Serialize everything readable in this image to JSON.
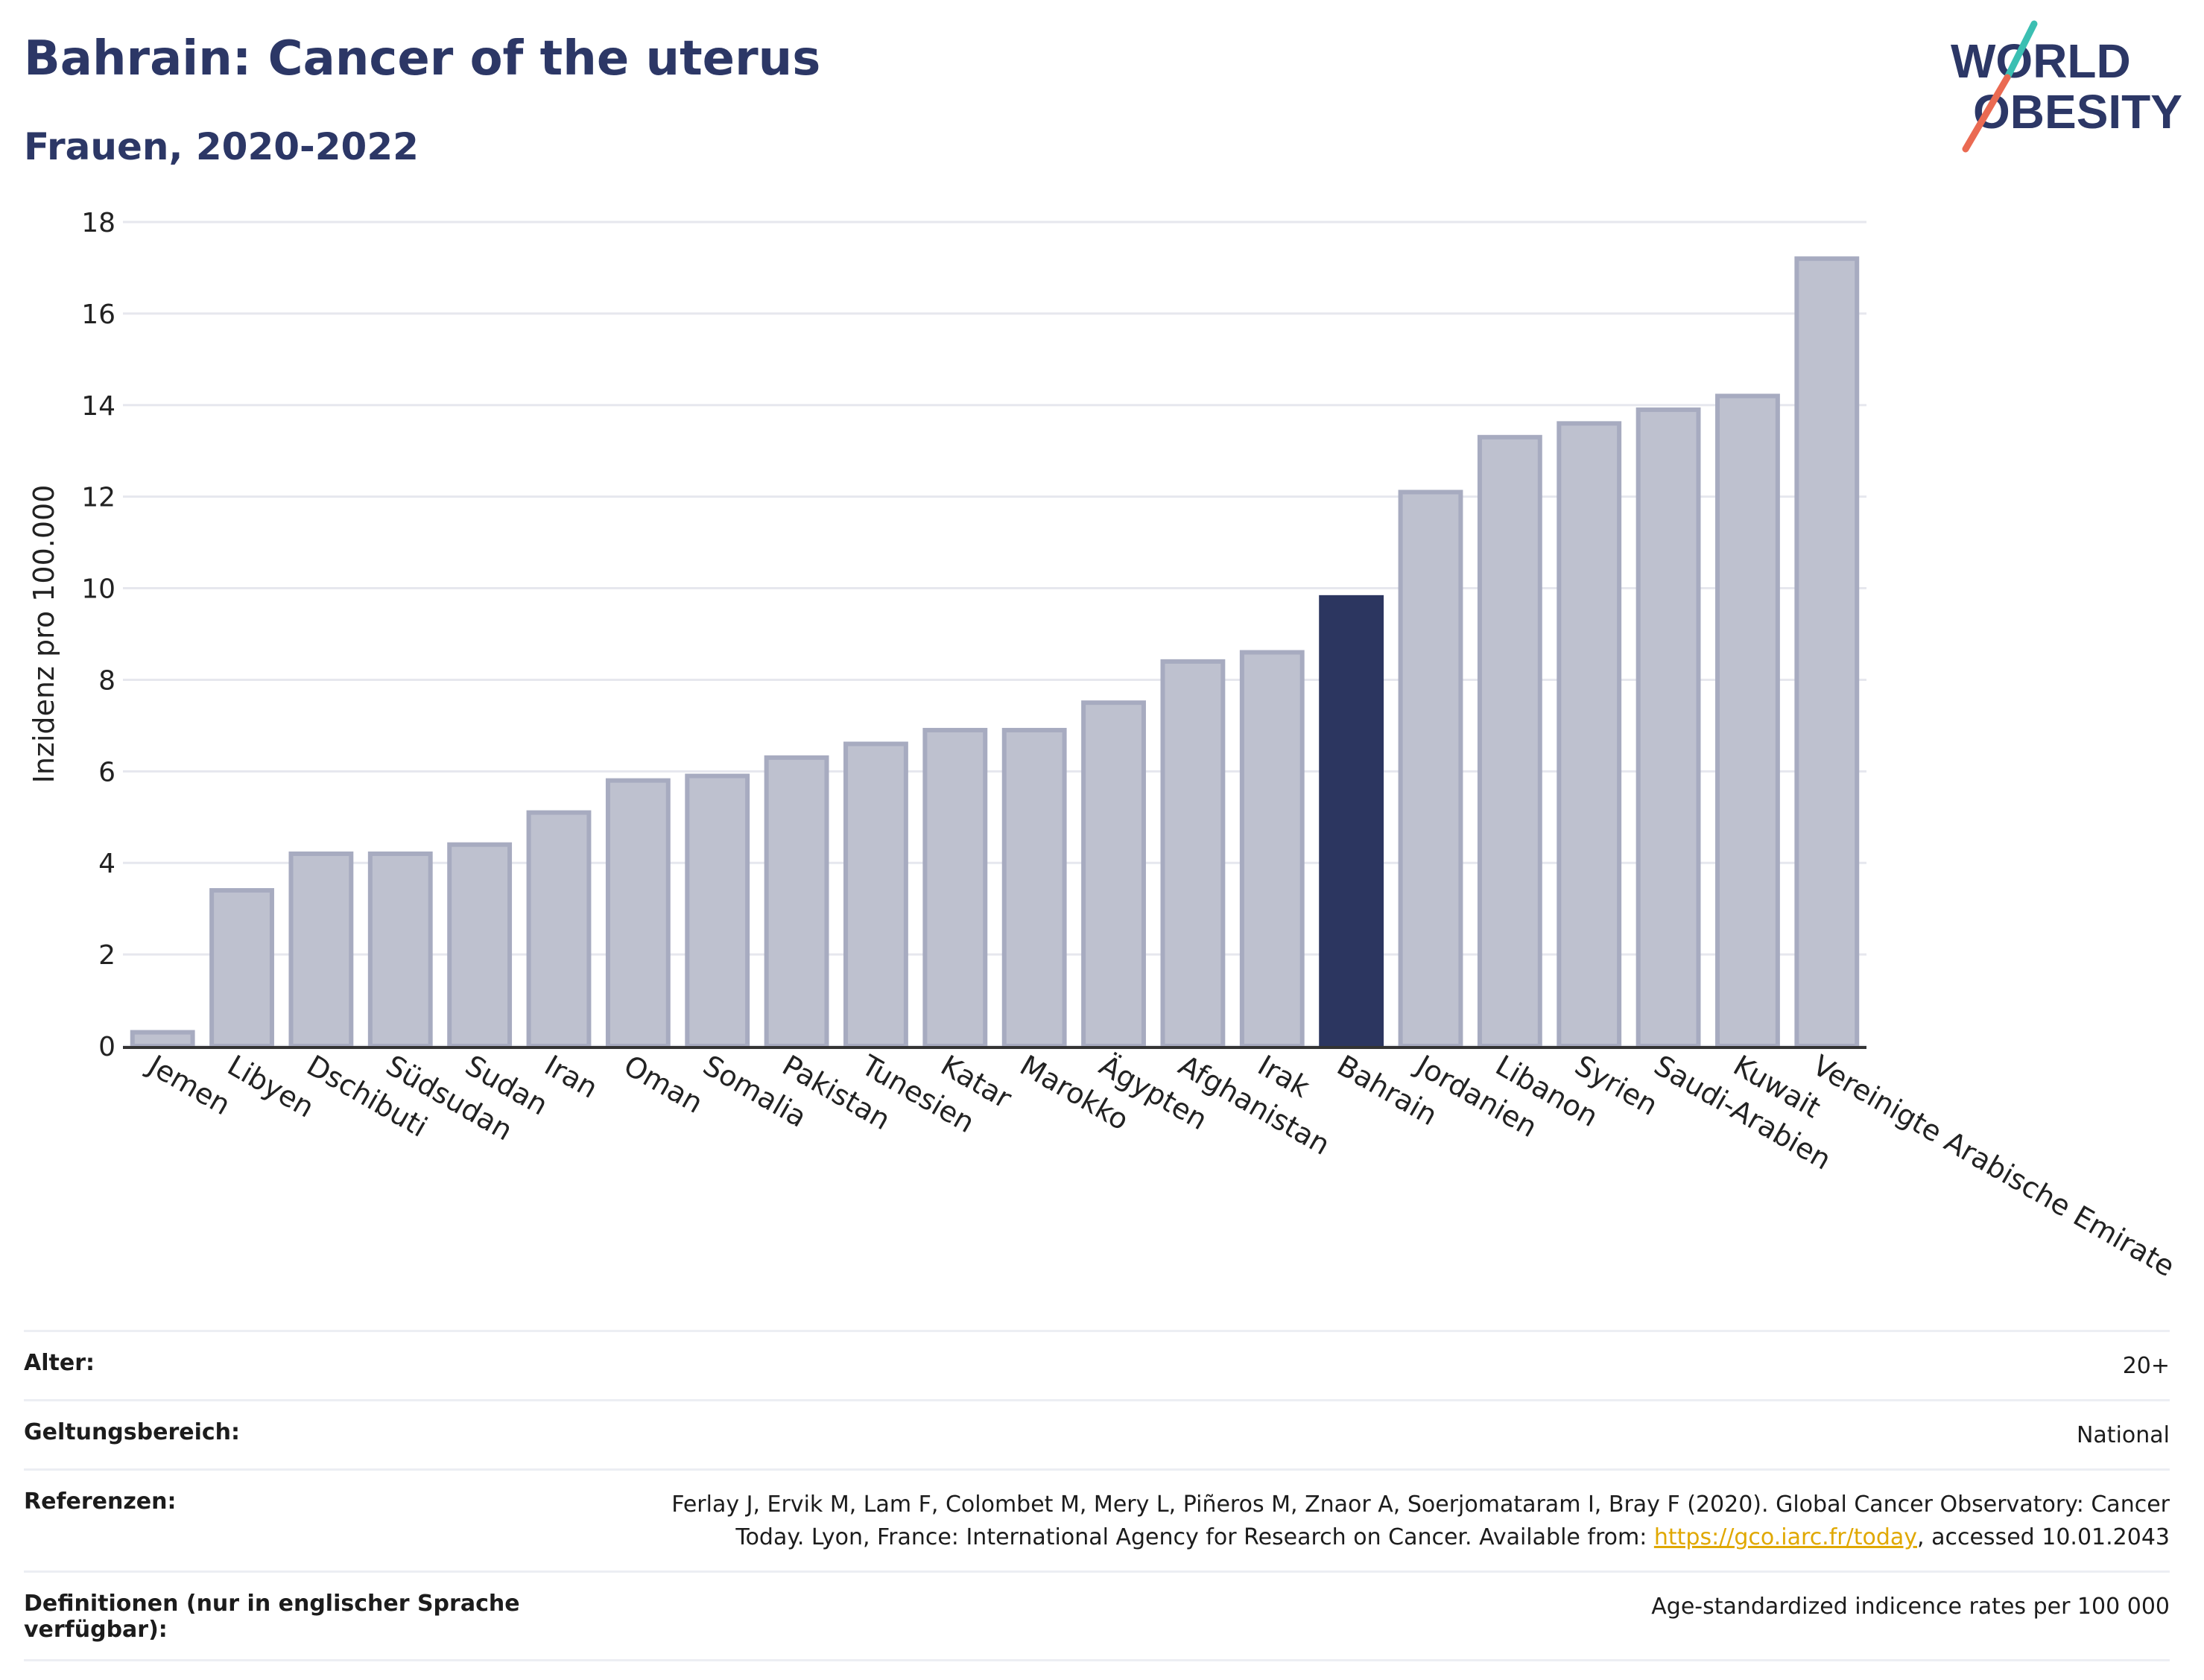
{
  "title": "Bahrain: Cancer of the uterus",
  "subtitle": "Frauen, 2020-2022",
  "logo": {
    "line1_pre": "W",
    "line1_o": "O",
    "line1_post": "RLD",
    "line2_o": "O",
    "line2_post": "BESITY"
  },
  "chart_data": {
    "type": "bar",
    "ylabel": "Inzidenz pro 100.000",
    "ylim": [
      0,
      18
    ],
    "yticks": [
      0,
      2,
      4,
      6,
      8,
      10,
      12,
      14,
      16,
      18
    ],
    "grid": true,
    "highlight": "Bahrain",
    "categories": [
      "Jemen",
      "Libyen",
      "Dschibuti",
      "Südsudan",
      "Sudan",
      "Iran",
      "Oman",
      "Somalia",
      "Pakistan",
      "Tunesien",
      "Katar",
      "Marokko",
      "Ägypten",
      "Afghanistan",
      "Irak",
      "Bahrain",
      "Jordanien",
      "Libanon",
      "Syrien",
      "Saudi-Arabien",
      "Kuwait",
      "Vereinigte Arabische Emirate"
    ],
    "values": [
      0.3,
      3.4,
      4.2,
      4.2,
      4.4,
      5.1,
      5.8,
      5.9,
      6.3,
      6.6,
      6.9,
      6.9,
      7.5,
      8.4,
      8.6,
      9.8,
      12.1,
      13.3,
      13.6,
      13.9,
      14.2,
      17.2
    ],
    "colors": {
      "bar": "#bec1cf",
      "bar_edge": "#a7abc0",
      "highlight": "#2c3660",
      "grid": "#e6e7ee",
      "axis": "#333333"
    }
  },
  "meta": {
    "age_label": "Alter:",
    "age_value": "20+",
    "scope_label": "Geltungsbereich:",
    "scope_value": "National",
    "ref_label": "Referenzen:",
    "ref_text1": "Ferlay J, Ervik M, Lam F, Colombet M, Mery L, Piñeros M, Znaor A, Soerjomataram I, Bray F (2020). Global Cancer Observatory: Cancer",
    "ref_text2": "Today. Lyon, France: International Agency for Research on Cancer. Available from: ",
    "ref_link": "https://gco.iarc.fr/today",
    "ref_text3": ", accessed 10.01.2043",
    "def_label": "Definitionen (nur in englischer Sprache verfügbar):",
    "def_value": "Age-standardized indicence rates per 100 000"
  }
}
